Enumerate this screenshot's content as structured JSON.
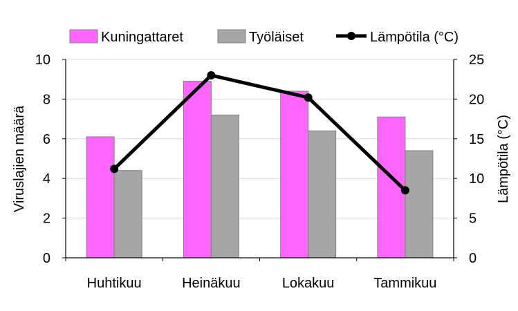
{
  "chart_data": {
    "type": "bar",
    "categories": [
      "Huhtikuu",
      "Heinäkuu",
      "Lokakuu",
      "Tammikuu"
    ],
    "series": [
      {
        "name": "Kuningattaret",
        "type": "bar",
        "axis": "left",
        "color": "#ff66ff",
        "values": [
          6.1,
          8.9,
          8.4,
          7.1
        ]
      },
      {
        "name": "Työläiset",
        "type": "bar",
        "axis": "left",
        "color": "#a6a6a6",
        "values": [
          4.4,
          7.2,
          6.4,
          5.4
        ]
      },
      {
        "name": "Lämpötila (°C)",
        "type": "line",
        "axis": "right",
        "color": "#000000",
        "values": [
          11.2,
          23.0,
          20.2,
          8.5
        ]
      }
    ],
    "ylabel": "Viruslajien määrä",
    "y2label": "Lämpötila (°C)",
    "ylim": [
      0,
      10
    ],
    "y2lim": [
      0,
      25
    ],
    "yticks": [
      "0",
      "2",
      "4",
      "6",
      "8",
      "10"
    ],
    "y2ticks": [
      "0",
      "5",
      "10",
      "15",
      "20",
      "25"
    ],
    "grid": true,
    "legend_position": "top"
  }
}
